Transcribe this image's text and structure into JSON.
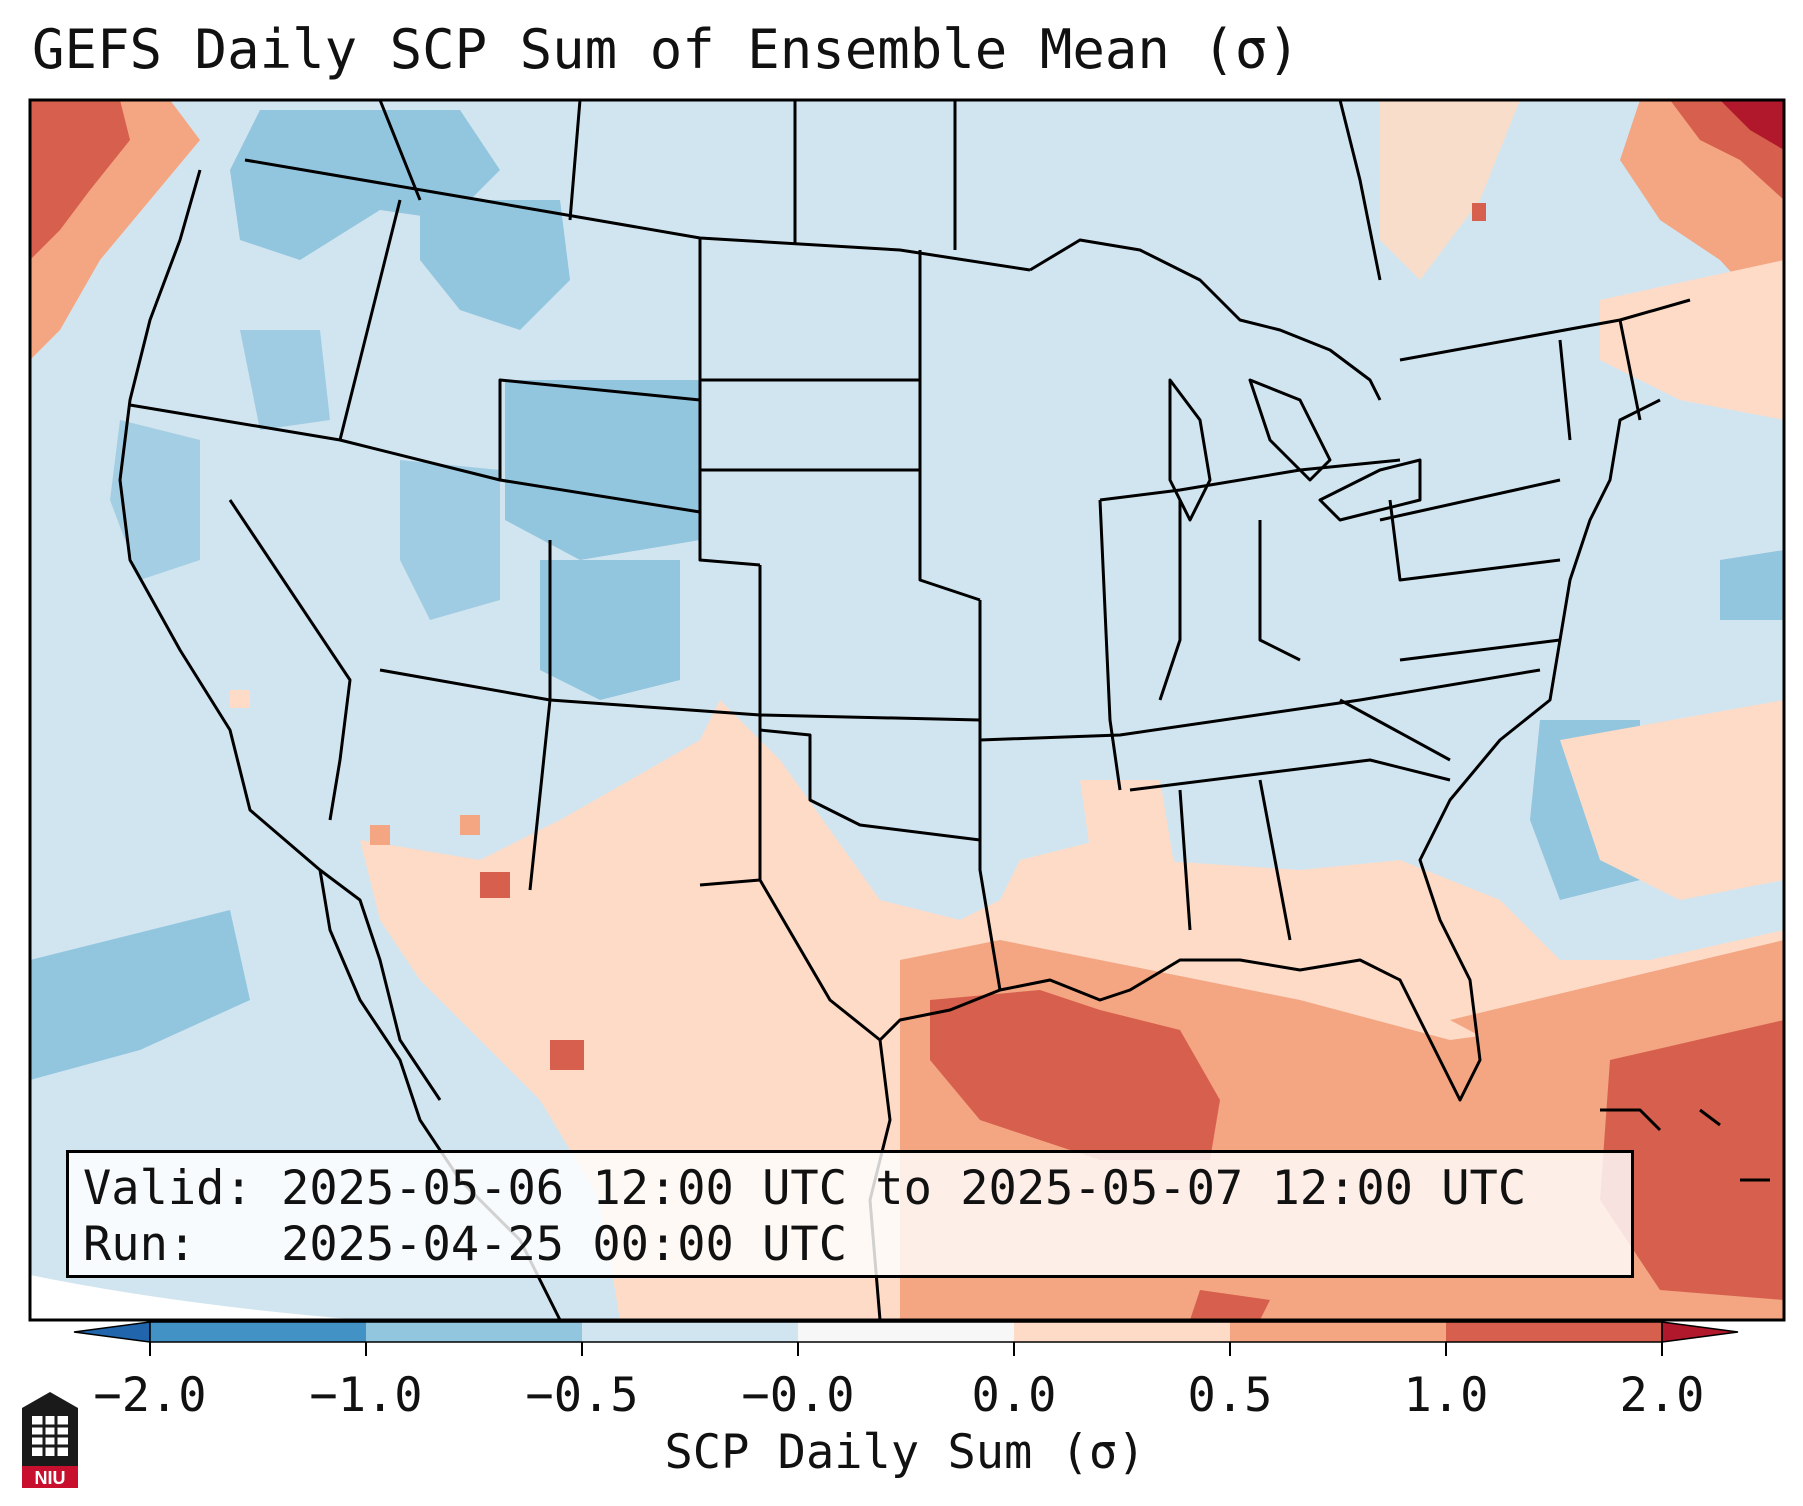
{
  "title": "GEFS Daily SCP Sum of Ensemble Mean (σ)",
  "info": {
    "valid_label": "Valid:",
    "valid_value": "2025-05-06 12:00 UTC to 2025-05-07 12:00 UTC",
    "run_label": "Run:",
    "run_value": "2025-04-25 00:00 UTC"
  },
  "colorbar": {
    "title": "SCP Daily Sum (σ)",
    "ticks": [
      "−2.0",
      "−1.0",
      "−0.5",
      "−0.0",
      "0.0",
      "0.5",
      "1.0",
      "2.0"
    ],
    "colors": [
      "#4292c6",
      "#92c5de",
      "#d1e5f0",
      "#f7f7f7",
      "#fddbc7",
      "#f4a582",
      "#d6604d",
      "#b2182b"
    ],
    "extend": "both"
  },
  "logo_text": "NIU"
}
